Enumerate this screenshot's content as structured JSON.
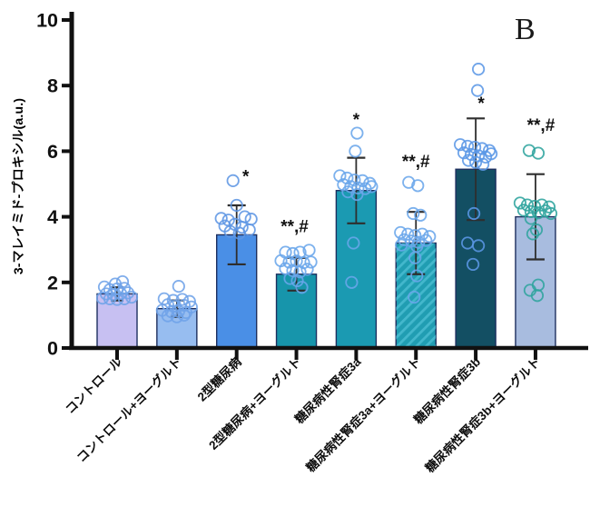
{
  "figure_label": "B",
  "colors": {
    "background": "#ffffff",
    "axis": "#111111",
    "error_bar": "#2e2e2e",
    "bar_border": "#1d2f5f",
    "marker_text": "#111111",
    "hatch_stripe": "#4fc0d4"
  },
  "chart_data": {
    "type": "bar",
    "title": "",
    "xlabel": "",
    "ylabel": "3-マレイミド-プロキシル(a.u.)",
    "ylim": [
      0,
      10
    ],
    "yticks": [
      0,
      2,
      4,
      6,
      8,
      10
    ],
    "grid": false,
    "legend": false,
    "categories": [
      "コントロール",
      "コントロール+ヨーグルト",
      "2型糖尿病",
      "2型糖尿病+ヨーグルト",
      "糖尿病性腎症3a",
      "糖尿病性腎症3a+ヨーグルト",
      "糖尿病性腎症3b",
      "糖尿病性腎症3b+ヨーグルト"
    ],
    "bars": [
      {
        "label": "コントロール",
        "mean": 1.65,
        "sd": 0.2,
        "fill": "#c7c0f2",
        "hatch": false,
        "point_color": "#70a3e8",
        "marker": null,
        "points": [
          [
            -16,
            1.52
          ],
          [
            -8,
            1.5
          ],
          [
            0,
            1.48
          ],
          [
            8,
            1.5
          ],
          [
            16,
            1.55
          ],
          [
            -12,
            1.65
          ],
          [
            -4,
            1.63
          ],
          [
            4,
            1.66
          ],
          [
            12,
            1.68
          ],
          [
            -8,
            1.78
          ],
          [
            0,
            1.8
          ],
          [
            8,
            1.82
          ],
          [
            -14,
            1.86
          ],
          [
            -2,
            1.95
          ],
          [
            6,
            2.02
          ]
        ]
      },
      {
        "label": "コントロール+ヨーグルト",
        "mean": 1.2,
        "sd": 0.25,
        "fill": "#97bdf0",
        "hatch": false,
        "point_color": "#70a3e8",
        "marker": null,
        "points": [
          [
            2,
            1.88
          ],
          [
            -14,
            1.5
          ],
          [
            -4,
            1.45
          ],
          [
            6,
            1.48
          ],
          [
            14,
            1.42
          ],
          [
            -10,
            1.32
          ],
          [
            -2,
            1.28
          ],
          [
            8,
            1.3
          ],
          [
            16,
            1.25
          ],
          [
            -16,
            1.15
          ],
          [
            -6,
            1.1
          ],
          [
            2,
            1.12
          ],
          [
            10,
            1.08
          ],
          [
            -10,
            0.98
          ],
          [
            0,
            0.95
          ],
          [
            8,
            1.0
          ]
        ]
      },
      {
        "label": "2型糖尿病",
        "mean": 3.45,
        "sd": 0.9,
        "fill": "#4a8fe6",
        "hatch": false,
        "point_color": "#5e96e4",
        "marker": {
          "text": "*",
          "dx": 10,
          "v": 5.22
        },
        "points": [
          [
            -4,
            5.1
          ],
          [
            0,
            4.35
          ],
          [
            -17,
            3.95
          ],
          [
            -9,
            3.9
          ],
          [
            9,
            4.0
          ],
          [
            16,
            3.93
          ],
          [
            -13,
            3.72
          ],
          [
            -2,
            3.77
          ],
          [
            6,
            3.68
          ],
          [
            14,
            3.6
          ],
          [
            -7,
            3.55
          ],
          [
            3,
            3.5
          ]
        ]
      },
      {
        "label": "2型糖尿病+ヨーグルト",
        "mean": 2.25,
        "sd": 0.5,
        "fill": "#1795ab",
        "hatch": false,
        "point_color": "#6aa6ea",
        "marker": {
          "text": "**,#",
          "dx": -2,
          "v": 3.7
        },
        "points": [
          [
            14,
            2.98
          ],
          [
            -12,
            2.92
          ],
          [
            -4,
            2.88
          ],
          [
            4,
            2.92
          ],
          [
            -17,
            2.66
          ],
          [
            -8,
            2.62
          ],
          [
            0,
            2.65
          ],
          [
            8,
            2.6
          ],
          [
            16,
            2.62
          ],
          [
            -12,
            2.42
          ],
          [
            -4,
            2.36
          ],
          [
            4,
            2.32
          ],
          [
            12,
            2.4
          ],
          [
            -7,
            2.12
          ],
          [
            1,
            2.05
          ],
          [
            6,
            1.85
          ]
        ]
      },
      {
        "label": "糖尿病性腎症3a",
        "mean": 4.8,
        "sd": 1.0,
        "fill": "#1b9ab2",
        "hatch": false,
        "point_color": "#6aa6ea",
        "marker": {
          "text": "*",
          "dx": 0,
          "v": 6.95
        },
        "points": [
          [
            1,
            6.55
          ],
          [
            -1,
            6.0
          ],
          [
            -18,
            5.25
          ],
          [
            -10,
            5.18
          ],
          [
            -2,
            5.12
          ],
          [
            7,
            5.1
          ],
          [
            15,
            5.02
          ],
          [
            -14,
            4.98
          ],
          [
            -6,
            4.92
          ],
          [
            2,
            4.88
          ],
          [
            10,
            4.86
          ],
          [
            17,
            4.92
          ],
          [
            -9,
            4.76
          ],
          [
            1,
            4.68
          ],
          [
            -3,
            3.2
          ],
          [
            -5,
            2.0
          ]
        ]
      },
      {
        "label": "糖尿病性腎症3a+ヨーグルト",
        "mean": 3.2,
        "sd": 0.95,
        "fill": "#209db2",
        "hatch": true,
        "point_color": "#6aa6ea",
        "marker": {
          "text": "**,#",
          "dx": 0,
          "v": 5.68
        },
        "points": [
          [
            -8,
            5.05
          ],
          [
            2,
            4.95
          ],
          [
            -3,
            4.1
          ],
          [
            5,
            4.05
          ],
          [
            -17,
            3.52
          ],
          [
            -9,
            3.47
          ],
          [
            -1,
            3.43
          ],
          [
            7,
            3.47
          ],
          [
            15,
            3.4
          ],
          [
            -13,
            3.3
          ],
          [
            -5,
            3.26
          ],
          [
            3,
            3.22
          ],
          [
            11,
            3.28
          ],
          [
            -16,
            3.14
          ],
          [
            1,
            3.1
          ],
          [
            -1,
            2.75
          ],
          [
            1,
            2.2
          ],
          [
            -2,
            1.55
          ]
        ]
      },
      {
        "label": "糖尿病性腎症3b",
        "mean": 5.45,
        "sd": 1.55,
        "fill": "#134f63",
        "hatch": false,
        "point_color": "#5b97e6",
        "marker": {
          "text": "*",
          "dx": 6,
          "v": 7.45
        },
        "points": [
          [
            3,
            8.5
          ],
          [
            2,
            7.85
          ],
          [
            -17,
            6.2
          ],
          [
            -9,
            6.15
          ],
          [
            -1,
            6.12
          ],
          [
            7,
            6.08
          ],
          [
            15,
            6.02
          ],
          [
            -13,
            5.95
          ],
          [
            -5,
            5.9
          ],
          [
            3,
            5.86
          ],
          [
            11,
            5.82
          ],
          [
            17,
            5.92
          ],
          [
            -8,
            5.72
          ],
          [
            0,
            5.66
          ],
          [
            8,
            5.6
          ],
          [
            -2,
            4.1
          ],
          [
            -9,
            3.2
          ],
          [
            3,
            3.12
          ],
          [
            -3,
            2.55
          ]
        ]
      },
      {
        "label": "糖尿病性腎症3b+ヨーグルト",
        "mean": 4.0,
        "sd": 1.3,
        "fill": "#a8bcdf",
        "hatch": false,
        "point_color": "#2fa49e",
        "marker": {
          "text": "**,#",
          "dx": 6,
          "v": 6.78
        },
        "points": [
          [
            -7,
            6.02
          ],
          [
            3,
            5.94
          ],
          [
            -17,
            4.42
          ],
          [
            -9,
            4.36
          ],
          [
            -1,
            4.32
          ],
          [
            7,
            4.36
          ],
          [
            15,
            4.3
          ],
          [
            -13,
            4.2
          ],
          [
            -5,
            4.16
          ],
          [
            3,
            4.12
          ],
          [
            11,
            4.18
          ],
          [
            17,
            4.1
          ],
          [
            -5,
            3.95
          ],
          [
            1,
            3.6
          ],
          [
            -3,
            3.48
          ],
          [
            3,
            1.92
          ],
          [
            -6,
            1.76
          ],
          [
            2,
            1.6
          ]
        ]
      }
    ]
  }
}
